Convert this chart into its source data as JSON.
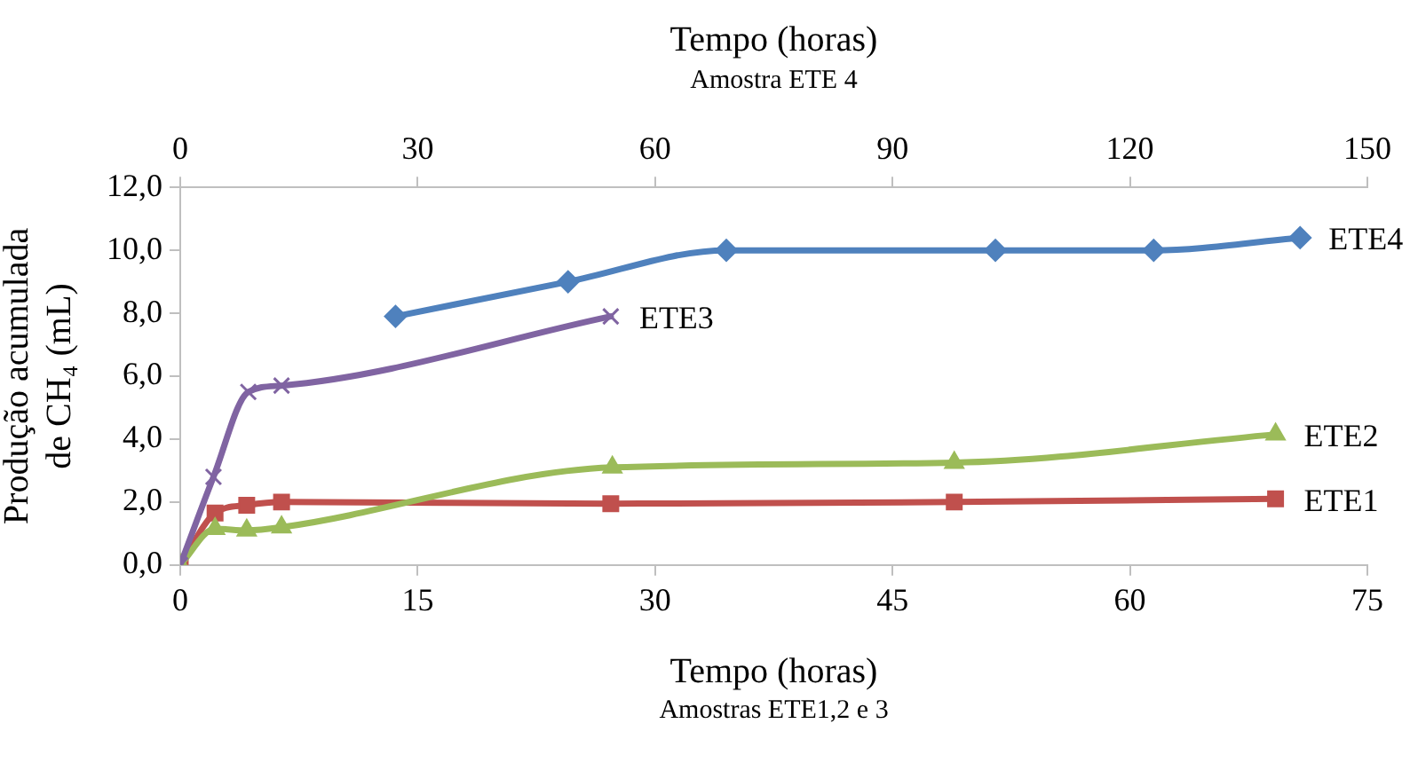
{
  "chart_data": {
    "type": "line",
    "xlabel": "Tempo (horas)",
    "x2label": "Tempo (horas)",
    "ylabel": "Produção acumulada de CH₄ (mL)",
    "annotations": [
      "Amostras ETE1,2 e 3",
      "Amostra ETE 4"
    ],
    "xlim": [
      0,
      75
    ],
    "xticks": [
      0,
      15,
      30,
      45,
      60,
      75
    ],
    "x2lim": [
      0,
      150
    ],
    "x2ticks": [
      0,
      30,
      60,
      90,
      120,
      150
    ],
    "ylim": [
      0,
      12
    ],
    "yticks": [
      {
        "value": 0,
        "label": "0,0"
      },
      {
        "value": 2,
        "label": "2,0"
      },
      {
        "value": 4,
        "label": "4,0"
      },
      {
        "value": 6,
        "label": "6,0"
      },
      {
        "value": 8,
        "label": "8,0"
      },
      {
        "value": 10,
        "label": "10,0"
      },
      {
        "value": 12,
        "label": "12,0"
      }
    ],
    "grid": false,
    "legend": false,
    "line_style": "solid",
    "series": [
      {
        "name": "ETE4",
        "color": "#4f81bd",
        "marker": "diamond",
        "axis": "x2",
        "x": [
          27.2,
          49,
          69,
          103,
          123,
          141.5
        ],
        "values": [
          7.9,
          9.0,
          10.0,
          10.0,
          10.0,
          10.4
        ]
      },
      {
        "name": "ETE3",
        "color": "#8064a2",
        "marker": "cross",
        "x": [
          0,
          2.1,
          4.3,
          6.4,
          27.2
        ],
        "values": [
          0,
          2.8,
          5.5,
          5.7,
          7.9
        ]
      },
      {
        "name": "ETE2",
        "color": "#9bbb59",
        "marker": "triangle",
        "x": [
          0,
          2.2,
          4.2,
          6.4,
          27.3,
          48.9,
          69.2
        ],
        "values": [
          0,
          1.15,
          1.1,
          1.2,
          3.1,
          3.25,
          4.15
        ]
      },
      {
        "name": "ETE1",
        "color": "#c0504d",
        "marker": "square",
        "x": [
          0,
          2.2,
          4.2,
          6.4,
          27.2,
          48.9,
          69.2
        ],
        "values": [
          0,
          1.65,
          1.9,
          2.0,
          1.95,
          2.0,
          2.1
        ]
      }
    ]
  }
}
